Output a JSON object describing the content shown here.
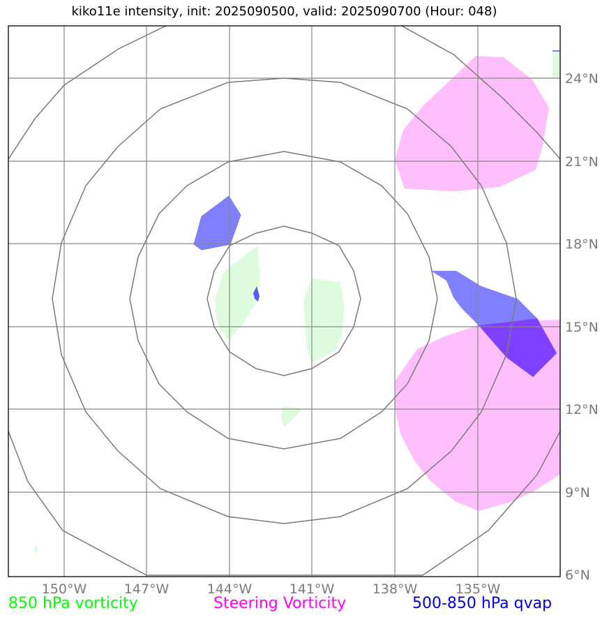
{
  "title": "kiko11e intensity, init: 2025090500, valid: 2025090700 (Hour: 048)",
  "x_ticks": [
    "150°W",
    "147°W",
    "144°W",
    "141°W",
    "138°W",
    "135°W"
  ],
  "y_ticks": [
    "24°N",
    "21°N",
    "18°N",
    "15°N",
    "12°N",
    "9°N",
    "6°N"
  ],
  "legend": [
    {
      "label": "850 hPa vorticity",
      "color": "#00ff00"
    },
    {
      "label": "Steering Vorticity",
      "color": "#ff00ff"
    },
    {
      "label": "500-850 hPa qvap",
      "color": "#0000dd"
    }
  ],
  "colors": {
    "vort850_fill": "#ddfcdd",
    "steer_fill": "#ffbffc",
    "qvap_fill": "#8080ff",
    "overlap_fill": "#8040ff",
    "grid": "#888888",
    "rings": "#7a7a7a",
    "tick_text": "#7a7a7a"
  },
  "map": {
    "lon_range": [
      -152,
      -132
    ],
    "lat_range": [
      6,
      26
    ],
    "center": {
      "lon": -142,
      "lat": 16
    },
    "range_rings": 4
  }
}
